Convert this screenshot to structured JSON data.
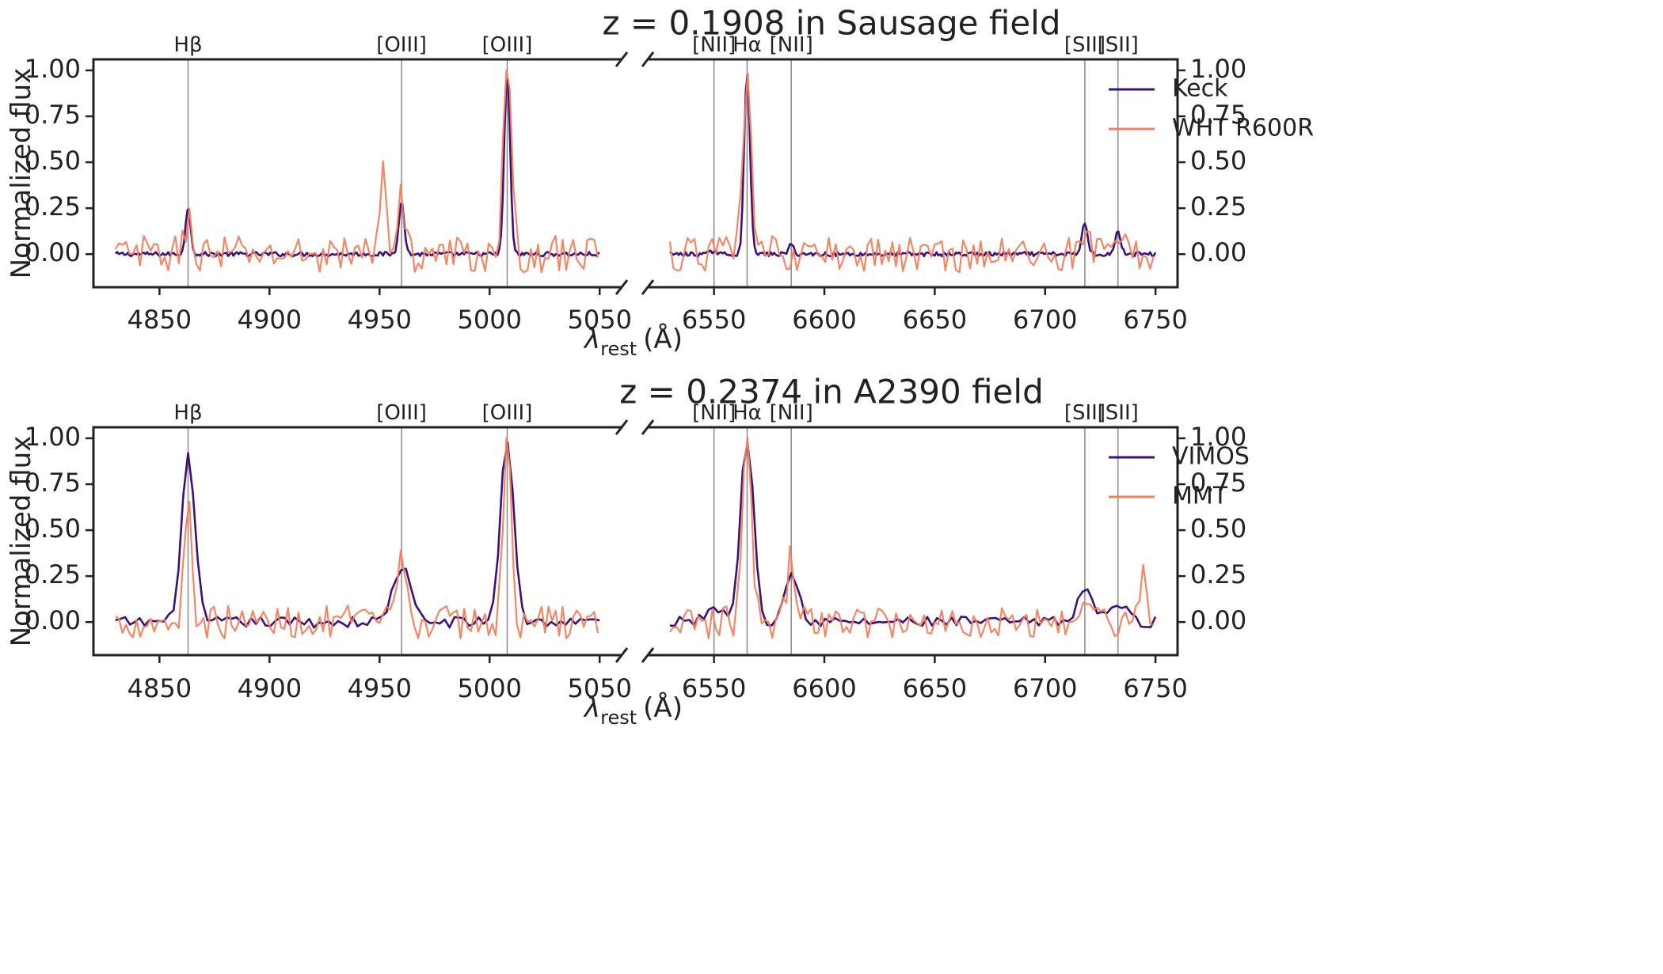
{
  "figure": {
    "colors": {
      "primary": "#3d1178",
      "secondary": "#f47f5c",
      "vline": "#8a8a8a",
      "axis": "#222222"
    }
  },
  "chart_data": [
    {
      "type": "line",
      "title": "z = 0.1908 in Sausage field",
      "xlabel": "λ_rest (Å)",
      "xlabel_main": "λ",
      "xlabel_sub": "rest",
      "xlabel_unit": "(Å)",
      "ylabel": "Normalized flux",
      "ylim": [
        -0.18,
        1.06
      ],
      "xlim_left": [
        4820,
        5060
      ],
      "xlim_right": [
        6520,
        6760
      ],
      "grid": false,
      "legend_position": "top-right",
      "xticks_left": [
        "4850",
        "4900",
        "4950",
        "5000",
        "5050"
      ],
      "xticks_right": [
        "6550",
        "6600",
        "6650",
        "6700",
        "6750"
      ],
      "yticks": [
        "0.00",
        "0.25",
        "0.50",
        "0.75",
        "1.00"
      ],
      "lines": [
        {
          "label": "Hβ",
          "x": 4863
        },
        {
          "label": "[OIII]",
          "x": 4960
        },
        {
          "label": "[OIII]",
          "x": 5008
        },
        {
          "label": "[NII]",
          "x": 6550
        },
        {
          "label": "Hα",
          "x": 6565
        },
        {
          "label": "[NII]",
          "x": 6585
        },
        {
          "label": "[SII]",
          "x": 6718
        },
        {
          "label": "[SII]",
          "x": 6733
        }
      ],
      "series": [
        {
          "name": "Keck",
          "color": "#3d1178",
          "x_range": [
            4830,
            5050,
            6530,
            6750
          ],
          "baseline_noise": 0.012,
          "peaks": [
            {
              "x": 4863,
              "amp": 0.24,
              "sigma": 1.2
            },
            {
              "x": 4960,
              "amp": 0.3,
              "sigma": 1.2
            },
            {
              "x": 5008,
              "amp": 1.0,
              "sigma": 1.3
            },
            {
              "x": 6550,
              "amp": 0.02,
              "sigma": 1.2
            },
            {
              "x": 6565,
              "amp": 1.0,
              "sigma": 1.3
            },
            {
              "x": 6585,
              "amp": 0.05,
              "sigma": 1.2
            },
            {
              "x": 6718,
              "amp": 0.17,
              "sigma": 1.3
            },
            {
              "x": 6733,
              "amp": 0.12,
              "sigma": 1.3
            }
          ]
        },
        {
          "name": "WHT R600R",
          "color": "#f47f5c",
          "x_range": [
            4830,
            5050,
            6530,
            6750
          ],
          "baseline_noise": 0.1,
          "peaks": [
            {
              "x": 4863,
              "amp": 0.2,
              "sigma": 1.5
            },
            {
              "x": 4952,
              "amp": 0.5,
              "sigma": 1.5
            },
            {
              "x": 4960,
              "amp": 0.3,
              "sigma": 1.5
            },
            {
              "x": 5008,
              "amp": 1.0,
              "sigma": 1.8
            },
            {
              "x": 6565,
              "amp": 1.0,
              "sigma": 1.8
            },
            {
              "x": 6718,
              "amp": 0.15,
              "sigma": 1.8
            },
            {
              "x": 6733,
              "amp": 0.1,
              "sigma": 1.8
            }
          ]
        }
      ]
    },
    {
      "type": "line",
      "title": "z = 0.2374 in A2390 field",
      "xlabel": "λ_rest (Å)",
      "xlabel_main": "λ",
      "xlabel_sub": "rest",
      "xlabel_unit": "(Å)",
      "ylabel": "Normalized flux",
      "ylim": [
        -0.18,
        1.06
      ],
      "xlim_left": [
        4820,
        5060
      ],
      "xlim_right": [
        6520,
        6760
      ],
      "grid": false,
      "legend_position": "top-right",
      "xticks_left": [
        "4850",
        "4900",
        "4950",
        "5000",
        "5050"
      ],
      "xticks_right": [
        "6550",
        "6600",
        "6650",
        "6700",
        "6750"
      ],
      "yticks": [
        "0.00",
        "0.25",
        "0.50",
        "0.75",
        "1.00"
      ],
      "lines": [
        {
          "label": "Hβ",
          "x": 4863
        },
        {
          "label": "[OIII]",
          "x": 4960
        },
        {
          "label": "[OIII]",
          "x": 5008
        },
        {
          "label": "[NII]",
          "x": 6550
        },
        {
          "label": "Hα",
          "x": 6565
        },
        {
          "label": "[NII]",
          "x": 6585
        },
        {
          "label": "[SII]",
          "x": 6718
        },
        {
          "label": "[SII]",
          "x": 6733
        }
      ],
      "series": [
        {
          "name": "VIMOS",
          "color": "#3d1178",
          "x_range": [
            4830,
            5050,
            6530,
            6750
          ],
          "baseline_noise": 0.03,
          "peaks": [
            {
              "x": 4863,
              "amp": 0.9,
              "sigma": 3.0
            },
            {
              "x": 4960,
              "amp": 0.3,
              "sigma": 4.0
            },
            {
              "x": 5008,
              "amp": 1.0,
              "sigma": 3.0
            },
            {
              "x": 6550,
              "amp": 0.08,
              "sigma": 4.0
            },
            {
              "x": 6565,
              "amp": 1.0,
              "sigma": 3.0
            },
            {
              "x": 6585,
              "amp": 0.26,
              "sigma": 3.5
            },
            {
              "x": 6718,
              "amp": 0.18,
              "sigma": 3.5
            },
            {
              "x": 6733,
              "amp": 0.11,
              "sigma": 3.5
            }
          ]
        },
        {
          "name": "MMT",
          "color": "#f47f5c",
          "x_range": [
            4830,
            5050,
            6530,
            6750
          ],
          "baseline_noise": 0.09,
          "peaks": [
            {
              "x": 4863,
              "amp": 0.72,
              "sigma": 1.6
            },
            {
              "x": 4960,
              "amp": 0.38,
              "sigma": 1.8
            },
            {
              "x": 5008,
              "amp": 1.0,
              "sigma": 1.8
            },
            {
              "x": 6565,
              "amp": 1.0,
              "sigma": 2.0
            },
            {
              "x": 6585,
              "amp": 0.34,
              "sigma": 2.0
            },
            {
              "x": 6720,
              "amp": 0.18,
              "sigma": 2.0
            },
            {
              "x": 6745,
              "amp": 0.3,
              "sigma": 1.5
            }
          ]
        }
      ]
    }
  ]
}
